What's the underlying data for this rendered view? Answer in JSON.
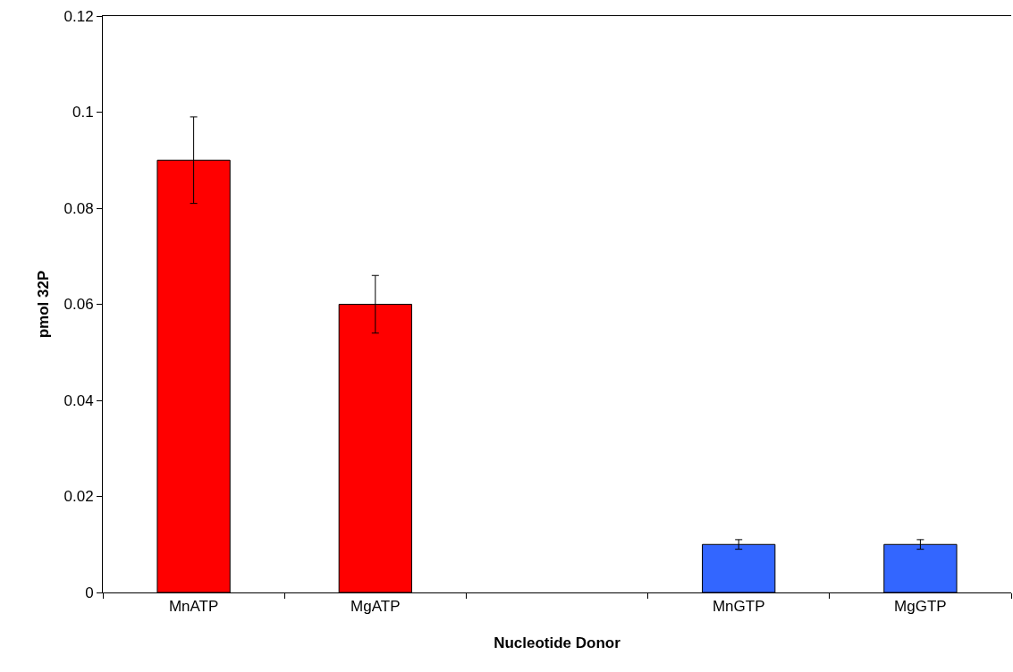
{
  "chart_data": {
    "type": "bar",
    "xlabel": "Nucleotide Donor",
    "ylabel": "pmol 32P",
    "categories": [
      "MnATP",
      "MgATP",
      null,
      "MnGTP",
      "MgGTP"
    ],
    "values": [
      0.09,
      0.06,
      null,
      0.01,
      0.01
    ],
    "colors": [
      "#ff0000",
      "#ff0000",
      null,
      "#3366ff",
      "#3366ff"
    ],
    "errors": [
      0.009,
      0.006,
      null,
      0.001,
      0.001
    ],
    "ylim": [
      0,
      0.12
    ],
    "yticks": [
      0,
      0.02,
      0.04,
      0.06,
      0.08,
      0.1,
      0.12
    ],
    "grid": false,
    "legend": false
  }
}
